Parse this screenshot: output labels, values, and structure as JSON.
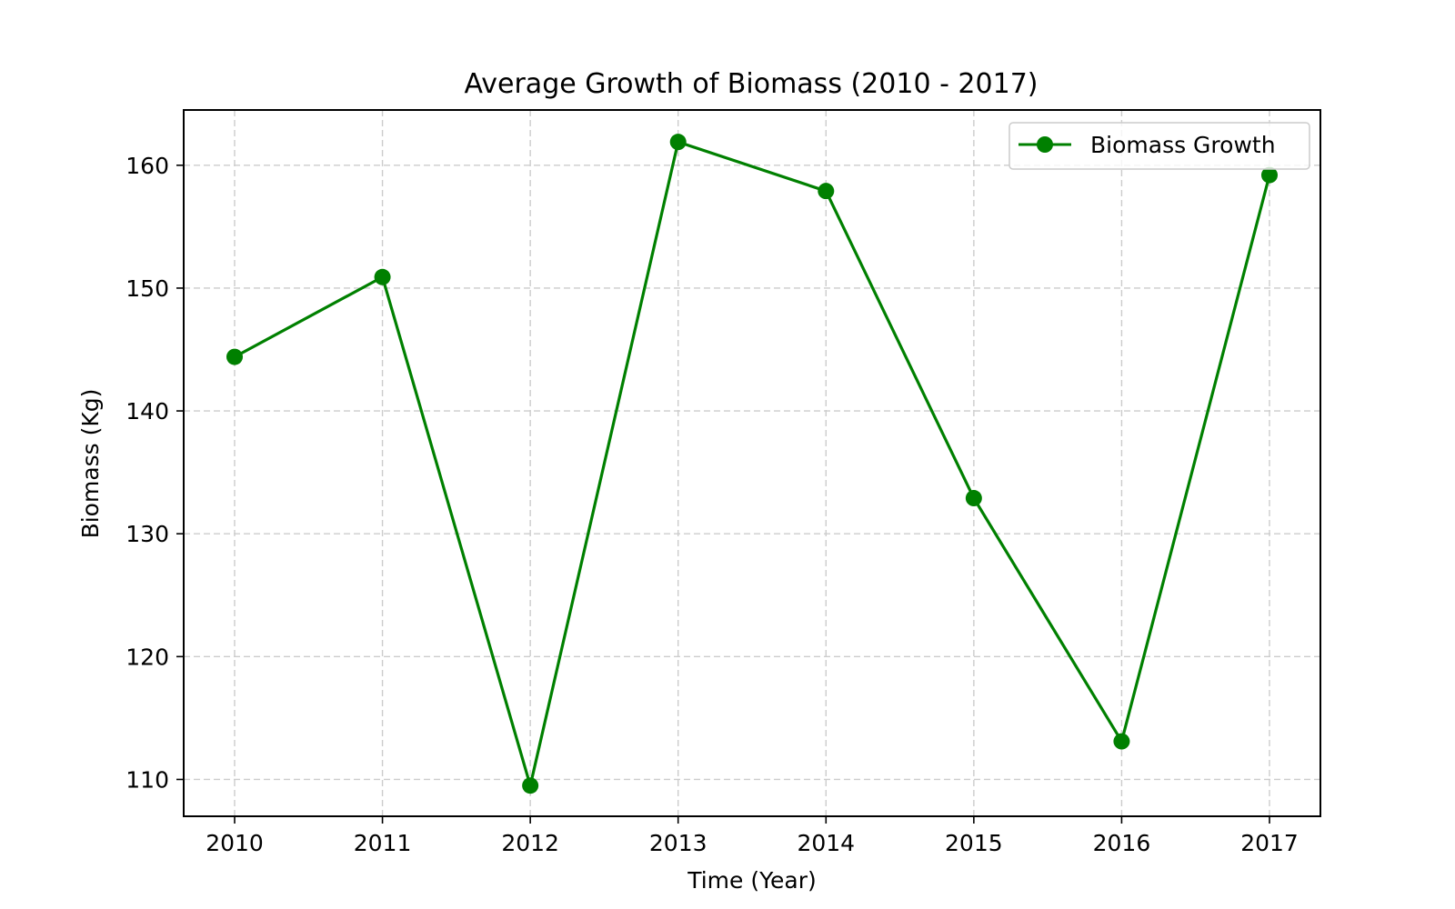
{
  "chart_data": {
    "type": "line",
    "title": "Average Growth of Biomass (2010 - 2017)",
    "xlabel": "Time (Year)",
    "ylabel": "Biomass (Kg)",
    "x": [
      "2010",
      "2011",
      "2012",
      "2013",
      "2014",
      "2015",
      "2016",
      "2017"
    ],
    "series": [
      {
        "name": "Biomass Growth",
        "values": [
          144.4,
          150.9,
          109.5,
          161.9,
          157.9,
          132.9,
          113.1,
          159.2
        ],
        "color": "#008000",
        "marker": "circle"
      }
    ],
    "ylim": [
      107.0,
      164.5
    ],
    "yticks": [
      110,
      120,
      130,
      140,
      150,
      160
    ],
    "grid": true,
    "grid_style": "dashed",
    "legend_position": "top-right"
  }
}
